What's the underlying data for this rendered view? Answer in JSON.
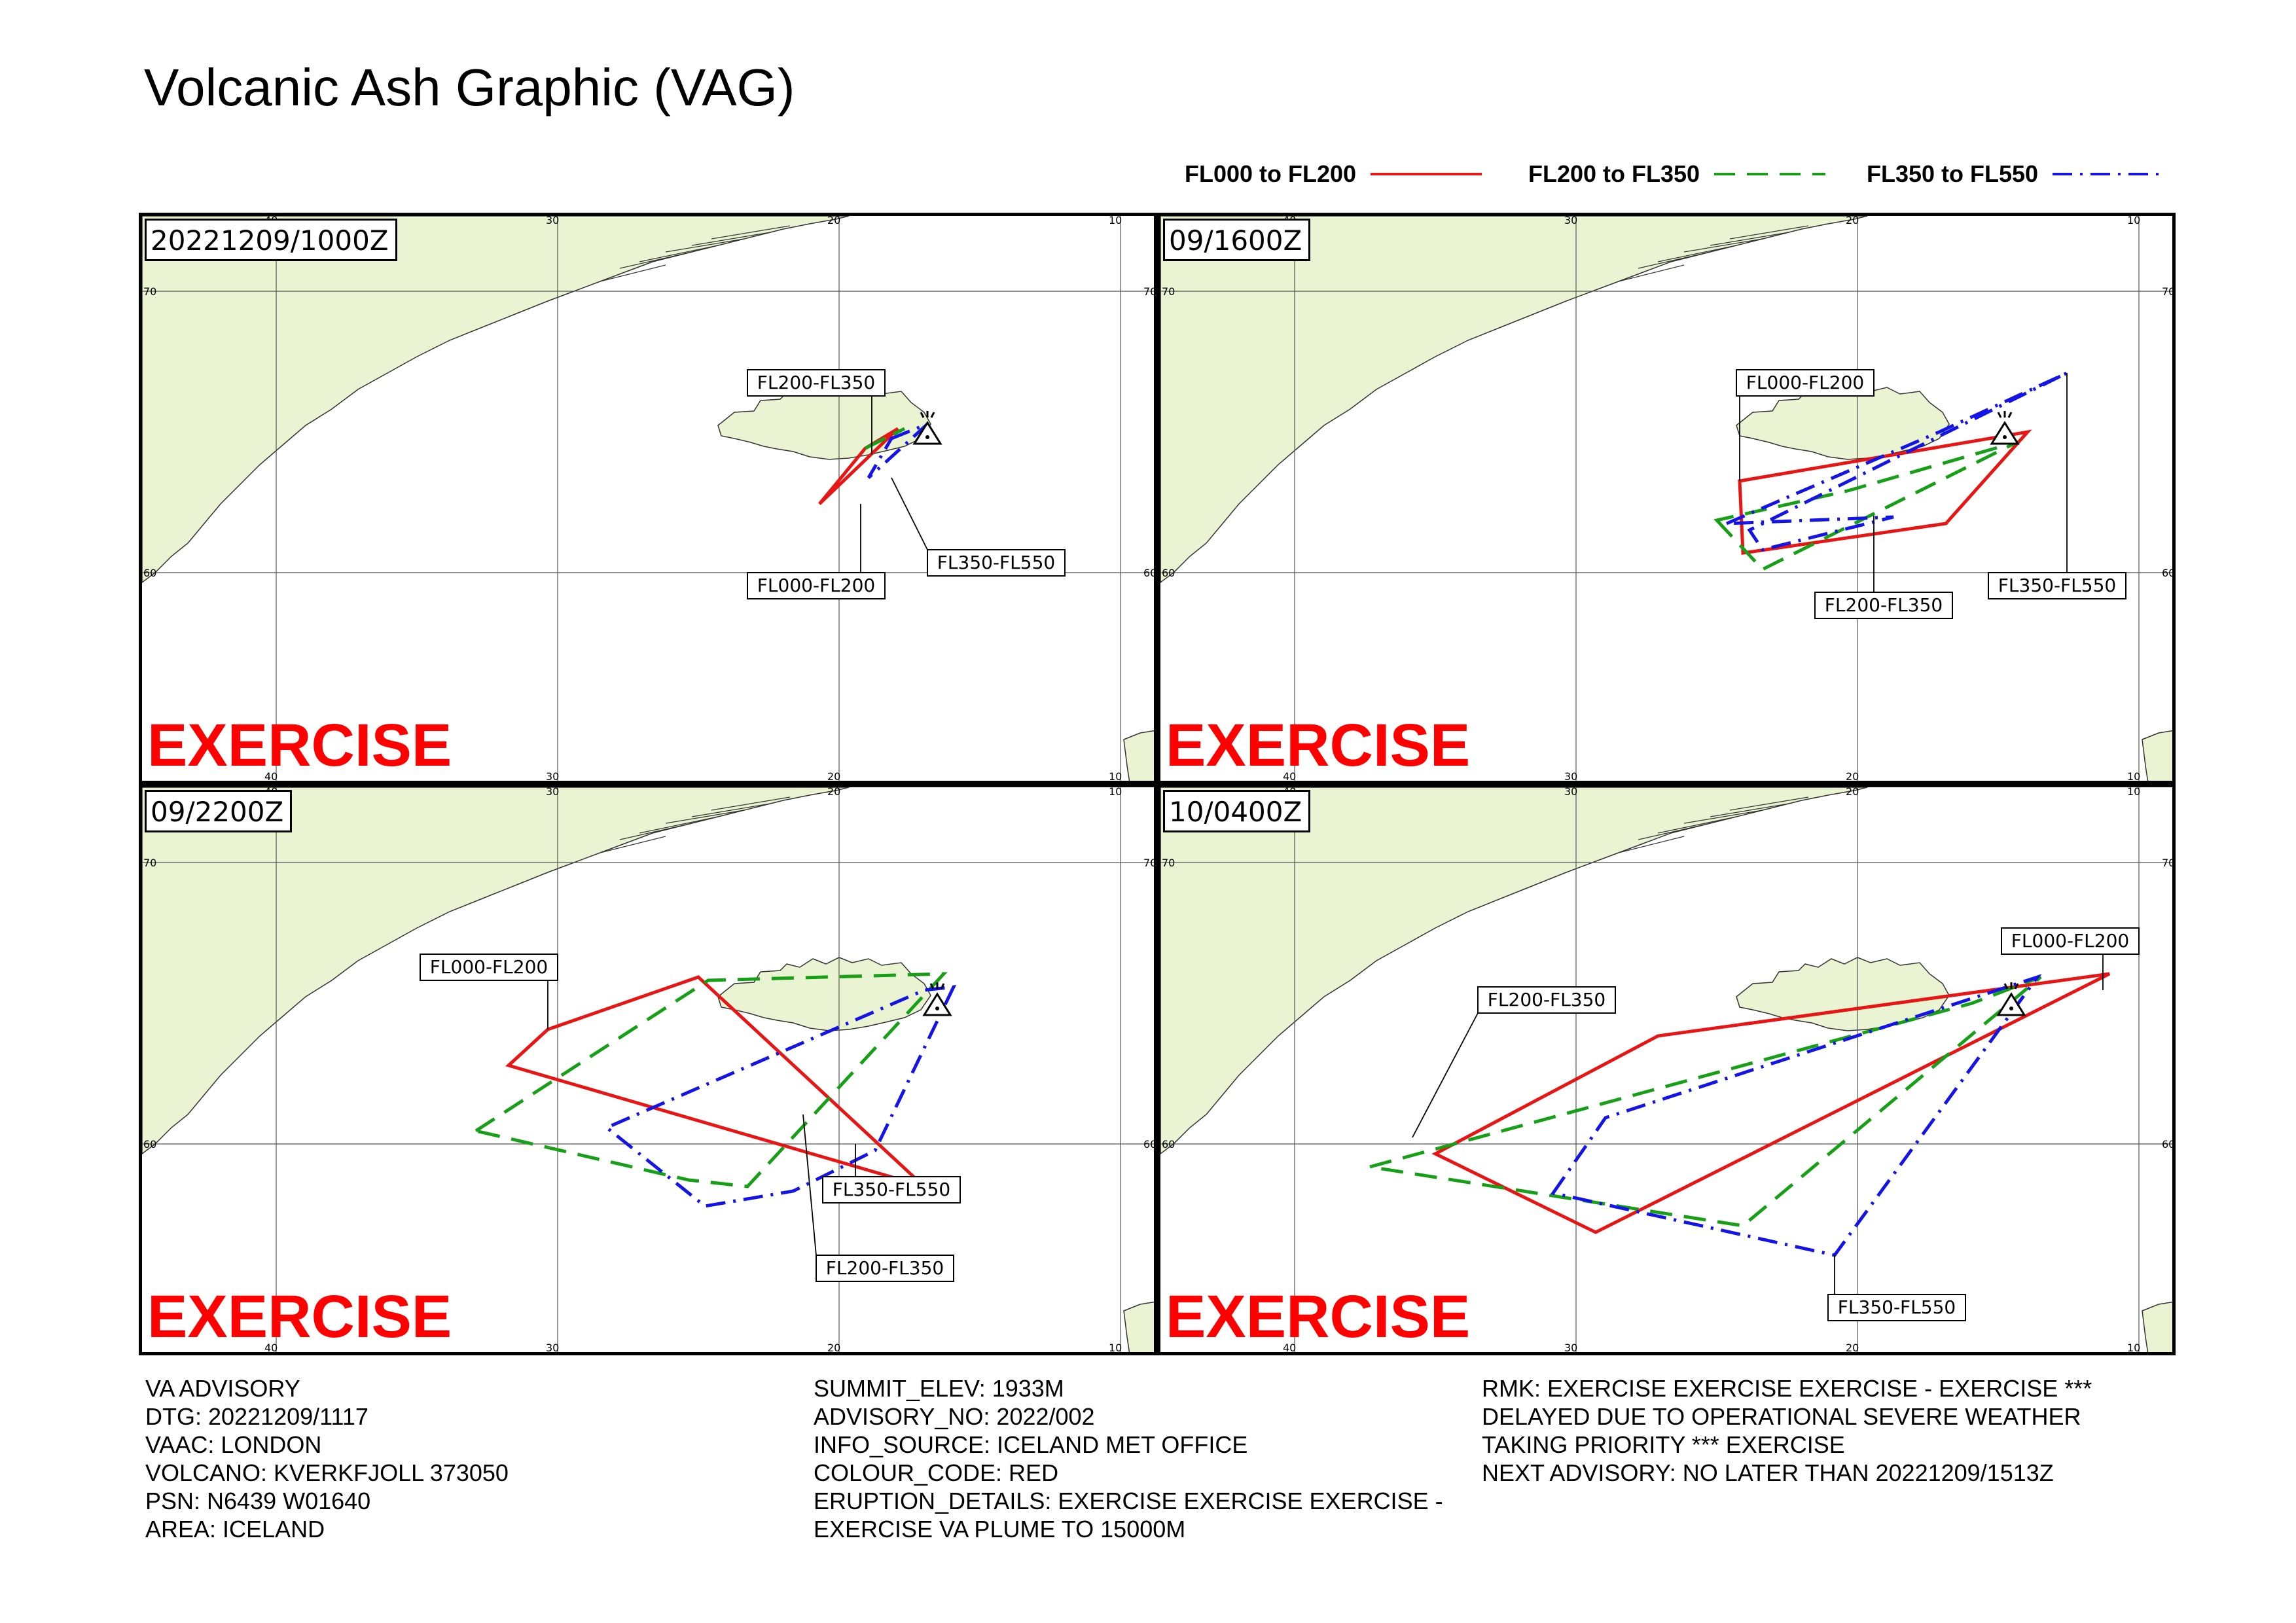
{
  "title": "Volcanic Ash Graphic (VAG)",
  "legend": [
    {
      "label": "FL000 to FL200",
      "color": "#e81515",
      "dash": "solid"
    },
    {
      "label": "FL200 to FL350",
      "color": "#17a017",
      "dash": "dashed"
    },
    {
      "label": "FL350 to FL550",
      "color": "#1414e6",
      "dash": "dashdot"
    }
  ],
  "colors": {
    "land": "#eaf4d3",
    "ocean": "#ffffff",
    "exercise": "#ff0000"
  },
  "map_graticule": {
    "lon_labels": [
      "40",
      "30",
      "20",
      "10"
    ],
    "lat_labels": [
      "70",
      "60"
    ]
  },
  "panels": [
    {
      "time": "20221209/1000Z",
      "watermark": "EXERCISE",
      "volcano_icon": "volcano-triangle-icon",
      "labels": [
        "FL200-FL350",
        "FL000-FL200",
        "FL350-FL550"
      ]
    },
    {
      "time": "09/1600Z",
      "watermark": "EXERCISE",
      "volcano_icon": "volcano-triangle-icon",
      "labels": [
        "FL000-FL200",
        "FL200-FL350",
        "FL350-FL550"
      ]
    },
    {
      "time": "09/2200Z",
      "watermark": "EXERCISE",
      "volcano_icon": "volcano-triangle-icon",
      "labels": [
        "FL000-FL200",
        "FL350-FL550",
        "FL200-FL350"
      ]
    },
    {
      "time": "10/0400Z",
      "watermark": "EXERCISE",
      "volcano_icon": "volcano-triangle-icon",
      "labels": [
        "FL200-FL350",
        "FL000-FL200",
        "FL350-FL550"
      ]
    }
  ],
  "advisory": {
    "col1": [
      "VA ADVISORY",
      "DTG: 20221209/1117",
      "VAAC: LONDON",
      "VOLCANO: KVERKFJOLL 373050",
      "PSN: N6439 W01640",
      "AREA: ICELAND"
    ],
    "col2": [
      "SUMMIT_ELEV: 1933M",
      "ADVISORY_NO: 2022/002",
      "INFO_SOURCE: ICELAND MET OFFICE",
      "COLOUR_CODE: RED",
      "ERUPTION_DETAILS: EXERCISE EXERCISE EXERCISE -",
      "EXERCISE VA PLUME TO 15000M"
    ],
    "col3": [
      "RMK: EXERCISE EXERCISE EXERCISE - EXERCISE ***",
      "DELAYED DUE TO OPERATIONAL SEVERE WEATHER",
      "TAKING PRIORITY *** EXERCISE",
      "NEXT ADVISORY: NO LATER THAN 20221209/1513Z"
    ]
  }
}
